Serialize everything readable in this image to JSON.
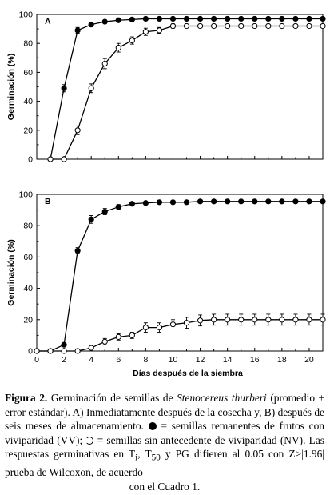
{
  "chart_data": [
    {
      "type": "line",
      "panel_label": "A",
      "ylabel": "Germinación (%)",
      "xlabel": "",
      "xlim": [
        0,
        21
      ],
      "ylim": [
        0,
        100
      ],
      "yticks": [
        0,
        20,
        40,
        60,
        80,
        100
      ],
      "series": [
        {
          "marker": "filled",
          "x": [
            1,
            2,
            3,
            4,
            5,
            6,
            7,
            8,
            9,
            10,
            11,
            12,
            13,
            14,
            15,
            16,
            17,
            18,
            19,
            20,
            21
          ],
          "y": [
            0,
            49,
            89,
            93,
            95,
            96,
            96.5,
            97,
            97,
            97,
            97,
            97,
            97,
            97,
            97,
            97,
            97,
            97,
            97,
            97,
            97
          ],
          "err": [
            0,
            2.5,
            2,
            1.5,
            1,
            1,
            0.5,
            0.5,
            0.5,
            0.5,
            0.5,
            0.5,
            0.5,
            0.5,
            0.5,
            0.5,
            0.5,
            0.5,
            0.5,
            0.5,
            0.5
          ]
        },
        {
          "marker": "open",
          "x": [
            1,
            2,
            3,
            4,
            5,
            6,
            7,
            8,
            9,
            10,
            11,
            12,
            13,
            14,
            15,
            16,
            17,
            18,
            19,
            20,
            21
          ],
          "y": [
            0,
            0,
            20,
            49,
            66,
            77,
            82,
            88,
            89,
            92,
            92,
            92,
            92,
            92,
            92,
            92,
            92,
            92,
            92,
            92,
            92
          ],
          "err": [
            0,
            0,
            3,
            3,
            3.5,
            3,
            2.5,
            2.5,
            2,
            1.5,
            1,
            1,
            1,
            1,
            1,
            1,
            1,
            1,
            1,
            1,
            1
          ]
        }
      ]
    },
    {
      "type": "line",
      "panel_label": "B",
      "ylabel": "Germinación (%)",
      "xlabel": "Días después de la siembra",
      "xlim": [
        0,
        21
      ],
      "ylim": [
        0,
        100
      ],
      "xticks": [
        0,
        2,
        4,
        6,
        8,
        10,
        12,
        14,
        16,
        18,
        20
      ],
      "yticks": [
        0,
        20,
        40,
        60,
        80,
        100
      ],
      "series": [
        {
          "marker": "filled",
          "x": [
            0,
            1,
            2,
            3,
            4,
            5,
            6,
            7,
            8,
            9,
            10,
            11,
            12,
            13,
            14,
            15,
            16,
            17,
            18,
            19,
            20,
            21
          ],
          "y": [
            0,
            0,
            4,
            64,
            84,
            89,
            92,
            94,
            94.5,
            95,
            95,
            95,
            95.5,
            95.5,
            95.5,
            95.5,
            95.5,
            95.5,
            95.5,
            95.5,
            95.5,
            95.5
          ],
          "err": [
            0,
            0,
            0.5,
            2,
            2.5,
            2,
            1.5,
            1,
            0.5,
            0.5,
            0.5,
            0.5,
            0.5,
            0.5,
            0.5,
            0.5,
            0.5,
            0.5,
            0.5,
            0.5,
            0.5,
            0.5
          ]
        },
        {
          "marker": "open",
          "x": [
            0,
            1,
            2,
            3,
            4,
            5,
            6,
            7,
            8,
            9,
            10,
            11,
            12,
            13,
            14,
            15,
            16,
            17,
            18,
            19,
            20,
            21
          ],
          "y": [
            0,
            0,
            0,
            0,
            2,
            6,
            9,
            10,
            15,
            15,
            17,
            18,
            19.5,
            20,
            20,
            20,
            20,
            20,
            20,
            20,
            20,
            20
          ],
          "err": [
            0,
            0,
            0,
            0,
            1,
            2,
            2,
            2,
            3,
            3,
            3,
            3.5,
            3.5,
            3.5,
            3.5,
            3.5,
            3.5,
            3.5,
            3.5,
            3.5,
            3.5,
            3.5
          ]
        }
      ]
    }
  ],
  "caption": {
    "label": "Figura 2.",
    "t1": " Germinación de semillas de ",
    "species": "Stenocereus thurberi",
    "t2": " (promedio ± error estándar). A) Inmediatamente después de la cosecha y, B) después de seis meses de almacenamiento. ",
    "t3": " = semillas remanentes de frutos con viviparidad (VV); ",
    "t4": " = semillas sin antecedente de viviparidad (NV). Las respuestas germinativas en T",
    "sub1": "i",
    "t5": ", T",
    "sub2": "50",
    "t6": " y PG difieren al 0.05 con Z>|1.96| prueba de Wilcoxon, de acuerdo",
    "t7": "con el Cuadro 1."
  }
}
